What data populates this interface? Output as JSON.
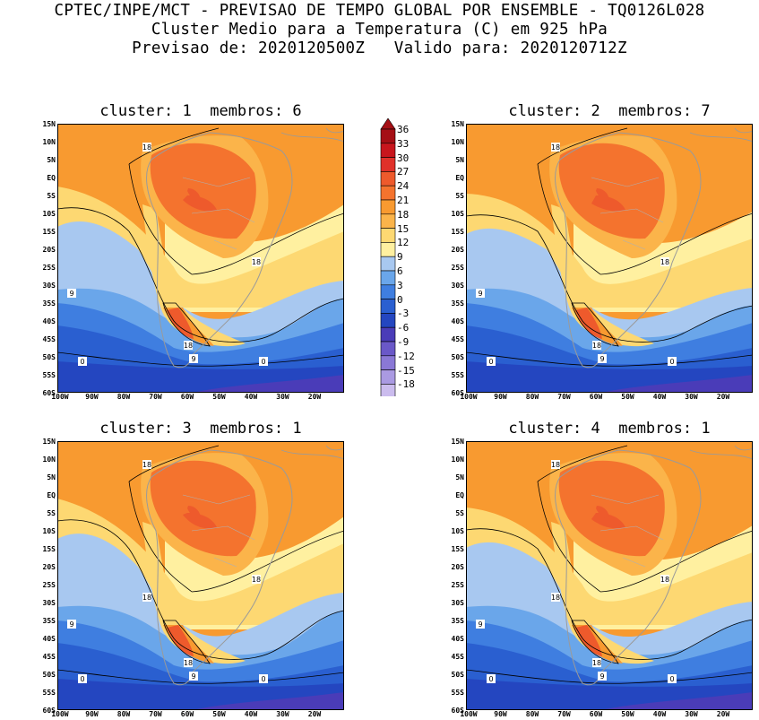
{
  "header": {
    "line1": "CPTEC/INPE/MCT - PREVISAO DE TEMPO GLOBAL POR ENSEMBLE - TQ0126L028",
    "line2": "Cluster Medio para a Temperatura (C) em 925 hPa",
    "line3": "Previsao de: 2020120500Z   Valido para: 2020120712Z"
  },
  "panels": [
    {
      "title": "cluster: 1  membros: 6"
    },
    {
      "title": "cluster: 2  membros: 7"
    },
    {
      "title": "cluster: 3  membros: 1"
    },
    {
      "title": "cluster: 4  membros: 1"
    }
  ],
  "axes": {
    "lat_labels": [
      "15N",
      "10N",
      "5N",
      "EQ",
      "5S",
      "10S",
      "15S",
      "20S",
      "25S",
      "30S",
      "35S",
      "40S",
      "45S",
      "50S",
      "55S",
      "60S"
    ],
    "lon_labels": [
      "100W",
      "90W",
      "80W",
      "70W",
      "60W",
      "50W",
      "40W",
      "30W",
      "20W"
    ]
  },
  "contour_labels": {
    "c18": "18",
    "c9": "9",
    "c0": "0"
  },
  "colorbar": {
    "levels": [
      "36",
      "33",
      "30",
      "27",
      "24",
      "21",
      "18",
      "15",
      "12",
      "9",
      "6",
      "3",
      "0",
      "-3",
      "-6",
      "-9",
      "-12",
      "-15",
      "-18"
    ],
    "colors": [
      "#a50f15",
      "#c8161d",
      "#e0312a",
      "#ee5a2c",
      "#f4732e",
      "#f89a30",
      "#fbb44a",
      "#fdd872",
      "#fff0a0",
      "#a8c8f0",
      "#6aa6ea",
      "#3f7ee0",
      "#2a5fd0",
      "#2446c0",
      "#4a3cb8",
      "#6a58c8",
      "#8a78d6",
      "#aa9ae2",
      "#cbbcee"
    ]
  }
}
